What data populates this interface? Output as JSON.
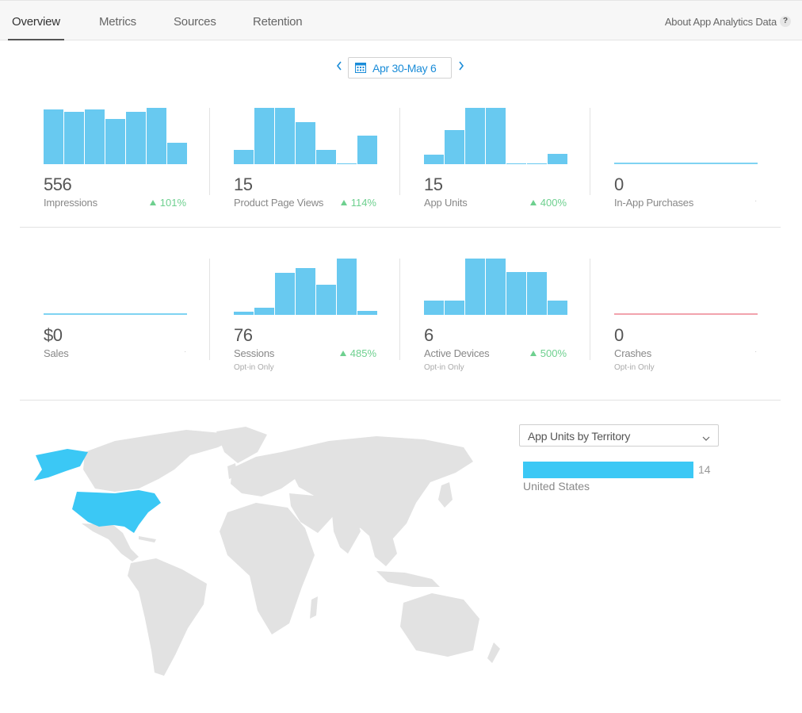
{
  "tabs": [
    {
      "label": "Overview",
      "active": true
    },
    {
      "label": "Metrics"
    },
    {
      "label": "Sources"
    },
    {
      "label": "Retention"
    }
  ],
  "about_link": "About App Analytics Data",
  "help_badge": "?",
  "date_range": {
    "label": "Apr 30-May 6",
    "prev_icon": "chevron-left-icon",
    "next_icon": "chevron-right-icon",
    "calendar_icon": "calendar-icon"
  },
  "metrics": [
    {
      "value": "556",
      "label": "Impressions",
      "change": "101%",
      "bars": [
        0.97,
        0.93,
        0.97,
        0.8,
        0.93,
        1.0,
        0.38
      ]
    },
    {
      "value": "15",
      "label": "Product Page Views",
      "change": "114%",
      "bars": [
        0.25,
        1.0,
        1.0,
        0.75,
        0.25,
        0.0,
        0.5
      ]
    },
    {
      "value": "15",
      "label": "App Units",
      "change": "400%",
      "bars": [
        0.17,
        0.6,
        1.0,
        1.0,
        0.0,
        0.0,
        0.19
      ]
    },
    {
      "value": "0",
      "label": "In-App Purchases",
      "change": "",
      "bars": [
        0,
        0,
        0,
        0,
        0,
        0,
        0
      ]
    },
    {
      "value": "$0",
      "label": "Sales",
      "change": "",
      "bars": [
        0,
        0,
        0,
        0,
        0,
        0,
        0
      ]
    },
    {
      "value": "76",
      "label": "Sessions",
      "note": "Opt-in Only",
      "change": "485%",
      "bars": [
        0.06,
        0.13,
        0.74,
        0.83,
        0.53,
        1.0,
        0.07
      ]
    },
    {
      "value": "6",
      "label": "Active Devices",
      "note": "Opt-in Only",
      "change": "500%",
      "bars": [
        0.25,
        0.25,
        1.0,
        1.0,
        0.76,
        0.76,
        0.25
      ]
    },
    {
      "value": "0",
      "label": "Crashes",
      "note": "Opt-in Only",
      "change": "",
      "bars": [
        0,
        0,
        0,
        0,
        0,
        0,
        0
      ]
    }
  ],
  "territory": {
    "dropdown_label": "App Units by Territory",
    "rows": [
      {
        "name": "United States",
        "value": "14",
        "fraction": 1.0
      }
    ]
  },
  "colors": {
    "bar": "#68c9f0",
    "flat_line": "#7fd3f2",
    "crash_line": "#f2a3ad",
    "positive": "#6ed08f",
    "accent": "#1a8cd8",
    "map_land": "#e2e2e2",
    "map_highlight": "#3bc8f5"
  }
}
